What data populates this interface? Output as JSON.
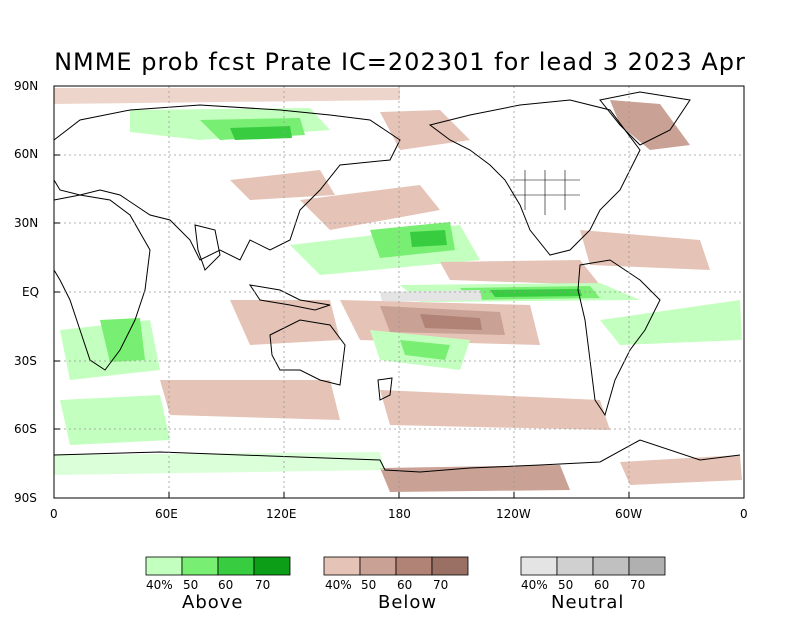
{
  "title": "NMME prob fcst Prate IC=202301 for lead 3 2023 Apr",
  "map": {
    "y_labels": [
      "90N",
      "60N",
      "30N",
      "EQ",
      "30S",
      "60S",
      "90S"
    ],
    "x_labels": [
      "0",
      "60E",
      "120E",
      "180",
      "120W",
      "60W",
      "0"
    ],
    "lat_range": [
      -90,
      90
    ],
    "lon_range": [
      0,
      360
    ]
  },
  "legend": {
    "above": {
      "title": "Above",
      "colors": [
        "#c3ffbe",
        "#78ee72",
        "#38cc40",
        "#0d9e17"
      ],
      "ticks": [
        "40%",
        "50",
        "60",
        "70"
      ]
    },
    "below": {
      "title": "Below",
      "colors": [
        "#e5c3b6",
        "#c9a195",
        "#b08376",
        "#9a7064"
      ],
      "ticks": [
        "40%",
        "50",
        "60",
        "70"
      ]
    },
    "neutral": {
      "title": "Neutral",
      "colors": [
        "#e4e4e4",
        "#d0d0d0",
        "#c0c0c0",
        "#b0b0b0"
      ],
      "ticks": [
        "40%",
        "50",
        "60",
        "70"
      ]
    }
  }
}
